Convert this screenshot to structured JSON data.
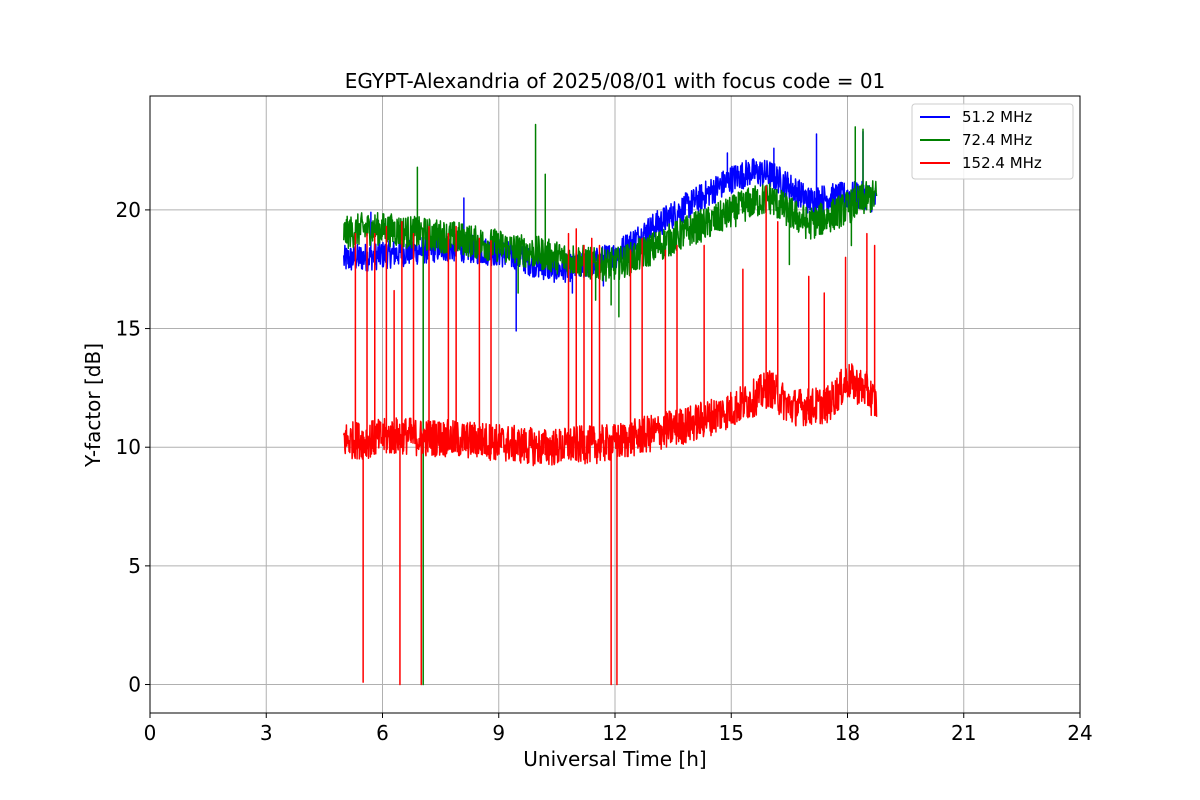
{
  "chart_data": {
    "type": "line",
    "title": "EGYPT-Alexandria of 2025/08/01 with focus code = 01",
    "xlabel": "Universal Time [h]",
    "ylabel": "Y-factor [dB]",
    "xlim": [
      0,
      24
    ],
    "ylim": [
      -1.2,
      24.8
    ],
    "xticks": [
      0,
      3,
      6,
      9,
      12,
      15,
      18,
      21,
      24
    ],
    "yticks": [
      0,
      5,
      10,
      15,
      20
    ],
    "xtick_labels": [
      "0",
      "3",
      "6",
      "9",
      "12",
      "15",
      "18",
      "21",
      "24"
    ],
    "ytick_labels": [
      "0",
      "5",
      "10",
      "15",
      "20"
    ],
    "grid": true,
    "legend_position": "top-right",
    "series": [
      {
        "name": "  51.2 MHz",
        "color": "#0000ff",
        "x": [
          5.0,
          5.5,
          6.0,
          6.5,
          7.0,
          7.5,
          8.0,
          8.5,
          9.0,
          9.5,
          10.0,
          10.5,
          11.0,
          11.5,
          12.0,
          12.5,
          13.0,
          13.5,
          14.0,
          14.5,
          15.0,
          15.5,
          16.0,
          16.5,
          17.0,
          17.5,
          18.0,
          18.5,
          18.75
        ],
        "y": [
          17.9,
          18.0,
          18.1,
          18.2,
          18.3,
          18.4,
          18.4,
          18.3,
          18.2,
          18.0,
          17.7,
          17.5,
          17.6,
          17.8,
          18.1,
          18.7,
          19.3,
          19.8,
          20.3,
          20.8,
          21.3,
          21.6,
          21.5,
          21.0,
          20.4,
          20.5,
          20.6,
          20.6,
          20.4
        ],
        "noise": 0.6,
        "spikes": [
          [
            5.7,
            19.9
          ],
          [
            8.1,
            20.5
          ],
          [
            9.45,
            14.9
          ],
          [
            10.9,
            16.5
          ],
          [
            11.7,
            16.8
          ],
          [
            14.9,
            22.4
          ],
          [
            16.1,
            22.6
          ],
          [
            17.2,
            23.2
          ],
          [
            18.2,
            23.0
          ],
          [
            18.4,
            23.3
          ]
        ]
      },
      {
        "name": "  72.4 MHz",
        "color": "#008000",
        "x": [
          5.0,
          5.5,
          6.0,
          6.5,
          7.0,
          7.5,
          8.0,
          8.5,
          9.0,
          9.5,
          10.0,
          10.5,
          11.0,
          11.5,
          12.0,
          12.5,
          13.0,
          13.5,
          14.0,
          14.5,
          15.0,
          15.5,
          16.0,
          16.5,
          17.0,
          17.5,
          18.0,
          18.5,
          18.75
        ],
        "y": [
          19.0,
          19.2,
          19.2,
          19.1,
          19.0,
          18.9,
          18.8,
          18.6,
          18.5,
          18.3,
          18.2,
          18.0,
          17.9,
          17.7,
          17.7,
          18.0,
          18.4,
          18.8,
          19.2,
          19.5,
          19.9,
          20.3,
          20.5,
          19.9,
          19.4,
          19.7,
          20.1,
          20.5,
          20.6
        ],
        "noise": 0.7,
        "spikes": [
          [
            6.9,
            21.8
          ],
          [
            7.05,
            0.0
          ],
          [
            9.5,
            16.5
          ],
          [
            9.95,
            23.6
          ],
          [
            10.2,
            21.5
          ],
          [
            11.5,
            16.2
          ],
          [
            11.9,
            16.0
          ],
          [
            12.1,
            15.5
          ],
          [
            18.1,
            18.5
          ],
          [
            18.2,
            23.5
          ],
          [
            18.4,
            23.4
          ],
          [
            16.5,
            17.7
          ]
        ]
      },
      {
        "name": " 152.4 MHz",
        "color": "#ff0000",
        "x": [
          5.0,
          5.5,
          6.0,
          6.5,
          7.0,
          7.5,
          8.0,
          8.5,
          9.0,
          9.5,
          10.0,
          10.5,
          11.0,
          11.5,
          12.0,
          12.5,
          13.0,
          13.5,
          14.0,
          14.5,
          15.0,
          15.5,
          16.0,
          16.5,
          17.0,
          17.5,
          18.0,
          18.5,
          18.75
        ],
        "y": [
          10.3,
          10.3,
          10.4,
          10.5,
          10.4,
          10.4,
          10.3,
          10.3,
          10.2,
          10.1,
          10.0,
          10.0,
          10.1,
          10.1,
          10.2,
          10.4,
          10.6,
          10.8,
          11.0,
          11.3,
          11.6,
          12.0,
          12.5,
          11.7,
          11.7,
          11.8,
          12.8,
          12.4,
          11.8
        ],
        "noise": 0.8,
        "spikes": [
          [
            5.3,
            19.0
          ],
          [
            5.5,
            0.1
          ],
          [
            5.6,
            19.0
          ],
          [
            5.8,
            19.0
          ],
          [
            6.1,
            19.3
          ],
          [
            6.3,
            16.6
          ],
          [
            6.45,
            0.0
          ],
          [
            6.5,
            19.5
          ],
          [
            6.8,
            19.0
          ],
          [
            7.0,
            0.0
          ],
          [
            7.2,
            19.3
          ],
          [
            7.7,
            19.0
          ],
          [
            7.9,
            19.3
          ],
          [
            8.5,
            18.8
          ],
          [
            8.8,
            18.7
          ],
          [
            10.8,
            19.0
          ],
          [
            11.0,
            19.2
          ],
          [
            11.2,
            18.5
          ],
          [
            11.4,
            18.8
          ],
          [
            11.6,
            18.5
          ],
          [
            11.9,
            0.0
          ],
          [
            12.05,
            0.0
          ],
          [
            12.4,
            18.3
          ],
          [
            12.7,
            18.8
          ],
          [
            13.3,
            18.3
          ],
          [
            13.6,
            18.5
          ],
          [
            14.3,
            18.5
          ],
          [
            15.3,
            17.5
          ],
          [
            15.9,
            21.0
          ],
          [
            16.2,
            19.5
          ],
          [
            17.0,
            17.2
          ],
          [
            17.4,
            16.5
          ],
          [
            17.95,
            18.0
          ],
          [
            18.5,
            19.0
          ],
          [
            18.7,
            18.5
          ]
        ]
      }
    ]
  }
}
